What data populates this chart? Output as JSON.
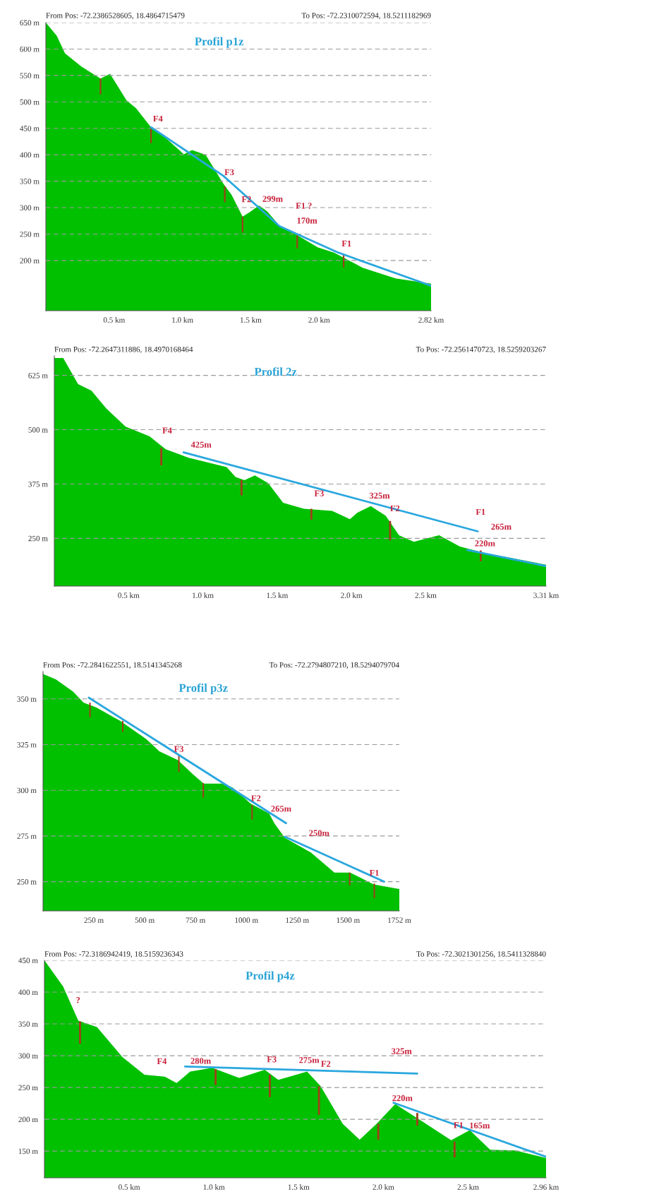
{
  "chart_data": [
    {
      "type": "area",
      "title": "Profil p1z",
      "annotations": [
        "From Pos: -72.2386528605, 18.4864715479",
        "To Pos: -72.2310072594, 18.5211182969",
        {
          "text": "F4",
          "x": 0.77,
          "y": 452
        },
        {
          "text": "F3",
          "x": 1.3,
          "y": 360
        },
        {
          "text": "F2",
          "x": 1.44,
          "y": 283
        },
        {
          "text": "299m",
          "x": 1.56,
          "y": 304
        },
        {
          "text": "F1 ?",
          "x": 1.71,
          "y": 265
        },
        {
          "text": "170m",
          "x": 1.84,
          "y": 248
        },
        {
          "text": "F1",
          "x": 2.18,
          "y": 212
        }
      ],
      "xlim": [
        0,
        2.82
      ],
      "xticks": [
        {
          "value": 0.5,
          "label": "0.5 km"
        },
        {
          "value": 1.0,
          "label": "1.0 km"
        },
        {
          "value": 1.5,
          "label": "1.5 km"
        },
        {
          "value": 2.0,
          "label": "2.0 km"
        },
        {
          "value": 2.82,
          "label": "2.82 km"
        }
      ],
      "ylim": [
        105,
        650
      ],
      "yticks": [
        {
          "value": 200,
          "label": "200 m"
        },
        {
          "value": 250,
          "label": "250 m"
        },
        {
          "value": 300,
          "label": "300 m"
        },
        {
          "value": 350,
          "label": "350 m"
        },
        {
          "value": 400,
          "label": "400 m"
        },
        {
          "value": 450,
          "label": "450 m"
        },
        {
          "value": 500,
          "label": "500 m"
        },
        {
          "value": 550,
          "label": "550 m"
        },
        {
          "value": 600,
          "label": "600 m"
        },
        {
          "value": 650,
          "label": "650 m"
        }
      ],
      "grid": "y",
      "series": [
        {
          "color": "#00c000",
          "x": [
            0,
            0.08,
            0.14,
            0.26,
            0.4,
            0.47,
            0.59,
            0.66,
            0.77,
            0.89,
            1.01,
            1.07,
            1.17,
            1.3,
            1.36,
            1.44,
            1.49,
            1.56,
            1.62,
            1.72,
            1.84,
            1.99,
            2.11,
            2.32,
            2.56,
            2.82
          ],
          "values": [
            650,
            625,
            592,
            567,
            544,
            553,
            503,
            488,
            452,
            429,
            401,
            409,
            400,
            345,
            324,
            283,
            291,
            304,
            293,
            263,
            248,
            225,
            215,
            186,
            166,
            156
          ]
        },
        {
          "type": "line",
          "color": "#2aa7de",
          "x": [
            0.77,
            1.3,
            1.71,
            2.14,
            2.82
          ],
          "values": [
            452,
            360,
            265,
            215,
            152
          ]
        },
        {
          "type": "bar",
          "color": "#a0401a",
          "x": [
            0.4,
            0.77,
            1.31,
            1.44,
            1.84,
            2.18
          ],
          "base": [
            544,
            452,
            340,
            283,
            248,
            212
          ],
          "values": [
            -30,
            -30,
            -30,
            -30,
            -25,
            -25
          ]
        }
      ]
    },
    {
      "type": "area",
      "title": "Profil 2z",
      "annotations": [
        "From Pos: -72.2647311886, 18.4970168464",
        "To Pos: -72.2561470723, 18.5259203267",
        {
          "text": "F4",
          "x": 0.72,
          "y": 458
        },
        {
          "text": "425m",
          "x": 0.87,
          "y": 448
        },
        {
          "text": "F3",
          "x": 1.73,
          "y": 318
        },
        {
          "text": "325m",
          "x": 2.13,
          "y": 324
        },
        {
          "text": "F2",
          "x": 2.26,
          "y": 290
        },
        {
          "text": "F1",
          "x": 2.85,
          "y": 266
        },
        {
          "text": "265m",
          "x": 2.85,
          "y": 266
        },
        {
          "text": "220m",
          "x": 2.78,
          "y": 223
        }
      ],
      "xlim": [
        0,
        3.31
      ],
      "xticks": [
        {
          "value": 0.5,
          "label": "0.5 km"
        },
        {
          "value": 1.0,
          "label": "1.0 km"
        },
        {
          "value": 1.5,
          "label": "1.5 km"
        },
        {
          "value": 2.0,
          "label": "2.0 km"
        },
        {
          "value": 2.5,
          "label": "2.5 km"
        },
        {
          "value": 3.31,
          "label": "3.31 km"
        }
      ],
      "ylim": [
        140,
        670
      ],
      "yticks": [
        {
          "value": 250,
          "label": "250 m"
        },
        {
          "value": 375,
          "label": "375 m"
        },
        {
          "value": 500,
          "label": "500 m"
        },
        {
          "value": 625,
          "label": "625 m"
        }
      ],
      "grid": "y",
      "series": [
        {
          "color": "#00c000",
          "x": [
            0,
            0.06,
            0.16,
            0.25,
            0.35,
            0.48,
            0.64,
            0.75,
            0.9,
            1.16,
            1.22,
            1.28,
            1.35,
            1.44,
            1.54,
            1.68,
            1.87,
            1.99,
            2.04,
            2.13,
            2.23,
            2.32,
            2.42,
            2.59,
            2.73,
            2.9,
            3.09,
            3.31
          ],
          "values": [
            665,
            665,
            605,
            590,
            549,
            507,
            485,
            455,
            436,
            414,
            391,
            384,
            395,
            377,
            332,
            318,
            313,
            294,
            309,
            324,
            302,
            257,
            242,
            257,
            231,
            216,
            204,
            189
          ]
        },
        {
          "type": "line",
          "color": "#2aa7de",
          "x": [
            0.87,
            2.85
          ],
          "values": [
            448,
            266
          ]
        },
        {
          "type": "line",
          "color": "#2aa7de",
          "x": [
            2.78,
            3.31
          ],
          "values": [
            223,
            186
          ]
        },
        {
          "type": "bar",
          "color": "#a0401a",
          "x": [
            0.72,
            1.26,
            1.73,
            2.26,
            2.87
          ],
          "base": [
            458,
            384,
            318,
            290,
            222
          ],
          "values": [
            -40,
            -35,
            -25,
            -45,
            -25
          ]
        }
      ]
    },
    {
      "type": "area",
      "title": "Profil p3z",
      "annotations": [
        "From Pos: -72.2841622551, 18.5141345268",
        "To Pos: -72.2794807210, 18.5294079704",
        {
          "text": "F3",
          "x": 668,
          "y": 319
        },
        {
          "text": "F2",
          "x": 1028,
          "y": 292
        },
        {
          "text": "265m",
          "x": 1195,
          "y": 282
        },
        {
          "text": "250m",
          "x": 1189,
          "y": 274.6
        },
        {
          "text": "F1",
          "x": 1629,
          "y": 249
        }
      ],
      "xlim": [
        0,
        1752
      ],
      "xticks": [
        {
          "value": 250,
          "label": "250 m"
        },
        {
          "value": 500,
          "label": "500 m"
        },
        {
          "value": 750,
          "label": "750 m"
        },
        {
          "value": 1000,
          "label": "1000 m"
        },
        {
          "value": 1250,
          "label": "1250 m"
        },
        {
          "value": 1500,
          "label": "1500 m"
        },
        {
          "value": 1752,
          "label": "1752 m"
        }
      ],
      "ylim": [
        234,
        365
      ],
      "yticks": [
        {
          "value": 250,
          "label": "250 m"
        },
        {
          "value": 275,
          "label": "275 m"
        },
        {
          "value": 300,
          "label": "300 m"
        },
        {
          "value": 325,
          "label": "325 m"
        },
        {
          "value": 350,
          "label": "350 m"
        }
      ],
      "grid": "y",
      "series": [
        {
          "color": "#00c000",
          "x": [
            0,
            64,
            148,
            199,
            263,
            379,
            508,
            572,
            662,
            739,
            790,
            880,
            932,
            1022,
            1112,
            1137,
            1189,
            1317,
            1433,
            1510,
            1626,
            1752
          ],
          "values": [
            363.6,
            360.7,
            354,
            348,
            345.3,
            338,
            328,
            321.3,
            316.6,
            308.6,
            303.7,
            303.7,
            301.5,
            292.6,
            287.3,
            282,
            274,
            266,
            255,
            255,
            248.5,
            246
          ]
        },
        {
          "type": "line",
          "color": "#2aa7de",
          "x": [
            225,
            1195
          ],
          "values": [
            350.7,
            282
          ]
        },
        {
          "type": "line",
          "color": "#2aa7de",
          "x": [
            1189,
            1677
          ],
          "values": [
            274.6,
            250
          ]
        },
        {
          "type": "bar",
          "color": "#a0401a",
          "x": [
            231,
            392,
            668,
            788,
            1028,
            1508,
            1629
          ],
          "base": [
            348,
            338,
            319,
            304,
            292,
            255,
            249
          ],
          "values": [
            -8,
            -6,
            -9,
            -8,
            -8,
            -7,
            -8
          ]
        }
      ]
    },
    {
      "type": "area",
      "title": "Profil p4z",
      "annotations": [
        "From Pos: -72.3186942419, 18.5159236343",
        "To Pos: -72.3021301256, 18.5411328840",
        {
          "text": "?",
          "x": 0.21,
          "y": 354
        },
        {
          "text": "F4",
          "x": 0.71,
          "y": 267
        },
        {
          "text": "280m",
          "x": 0.83,
          "y": 283
        },
        {
          "text": "F3",
          "x": 1.33,
          "y": 270
        },
        {
          "text": "275m",
          "x": 1.55,
          "y": 275
        },
        {
          "text": "F2",
          "x": 1.62,
          "y": 252
        },
        {
          "text": "325m",
          "x": 2.2,
          "y": 272
        },
        {
          "text": "220m",
          "x": 2.06,
          "y": 226
        },
        {
          "text": "F1",
          "x": 2.42,
          "y": 165
        },
        {
          "text": "165m",
          "x": 2.51,
          "y": 183
        }
      ],
      "xlim": [
        0,
        2.96
      ],
      "xticks": [
        {
          "value": 0.5,
          "label": "0.5 km"
        },
        {
          "value": 1.0,
          "label": "1.0 km"
        },
        {
          "value": 1.5,
          "label": "1.5 km"
        },
        {
          "value": 2.0,
          "label": "2.0 km"
        },
        {
          "value": 2.5,
          "label": "2.5 km"
        },
        {
          "value": 2.96,
          "label": "2.96 km"
        }
      ],
      "ylim": [
        108,
        450
      ],
      "yticks": [
        {
          "value": 150,
          "label": "150 m"
        },
        {
          "value": 200,
          "label": "200 m"
        },
        {
          "value": 250,
          "label": "250 m"
        },
        {
          "value": 300,
          "label": "300 m"
        },
        {
          "value": 350,
          "label": "350 m"
        },
        {
          "value": 400,
          "label": "400 m"
        },
        {
          "value": 450,
          "label": "450 m"
        }
      ],
      "grid": "y",
      "series": [
        {
          "color": "#00c000",
          "x": [
            0,
            0.11,
            0.2,
            0.31,
            0.46,
            0.59,
            0.71,
            0.78,
            0.86,
            0.99,
            1.15,
            1.3,
            1.38,
            1.55,
            1.63,
            1.76,
            1.86,
            1.96,
            2.07,
            2.24,
            2.4,
            2.51,
            2.63,
            2.78,
            2.96
          ],
          "values": [
            450,
            409,
            355,
            345,
            298,
            270,
            267,
            257,
            275,
            281,
            265,
            278,
            262,
            275,
            252,
            193,
            168,
            193,
            224,
            195,
            167,
            183,
            152,
            151,
            139
          ]
        },
        {
          "type": "line",
          "color": "#2aa7de",
          "x": [
            0.83,
            2.2
          ],
          "values": [
            283,
            272
          ]
        },
        {
          "type": "line",
          "color": "#2aa7de",
          "x": [
            2.06,
            2.96
          ],
          "values": [
            226,
            141
          ]
        },
        {
          "type": "bar",
          "color": "#a0401a",
          "x": [
            0.21,
            1.01,
            1.33,
            1.62,
            1.97,
            2.2,
            2.42
          ],
          "base": [
            354,
            279,
            270,
            252,
            193,
            210,
            165
          ],
          "values": [
            -35,
            -25,
            -35,
            -45,
            -25,
            -20,
            -25
          ]
        }
      ]
    }
  ]
}
